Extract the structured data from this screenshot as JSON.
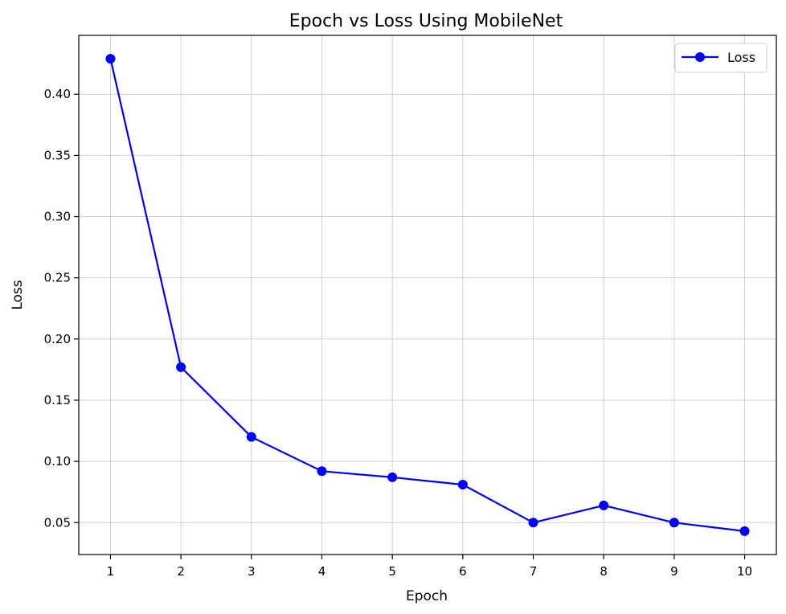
{
  "chart_data": {
    "type": "line",
    "title": "Epoch vs Loss Using MobileNet",
    "xlabel": "Epoch",
    "ylabel": "Loss",
    "x": [
      1,
      2,
      3,
      4,
      5,
      6,
      7,
      8,
      9,
      10
    ],
    "series": [
      {
        "name": "Loss",
        "color": "#0000ff",
        "marker": "circle",
        "values": [
          0.429,
          0.177,
          0.12,
          0.092,
          0.087,
          0.081,
          0.05,
          0.064,
          0.05,
          0.043
        ]
      }
    ],
    "xticks": [
      "1",
      "2",
      "3",
      "4",
      "5",
      "6",
      "7",
      "8",
      "9",
      "10"
    ],
    "yticks": [
      "0.05",
      "0.10",
      "0.15",
      "0.20",
      "0.25",
      "0.30",
      "0.35",
      "0.40"
    ],
    "xlim": [
      0.55,
      10.45
    ],
    "ylim": [
      0.0239,
      0.4481
    ],
    "grid": true,
    "legend_position": "top-right"
  }
}
